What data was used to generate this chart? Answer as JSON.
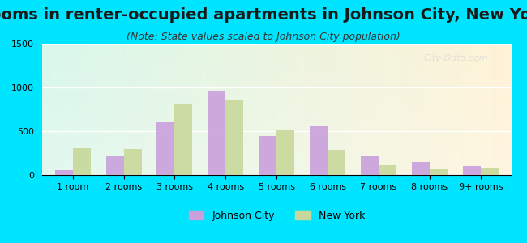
{
  "title": "Rooms in renter-occupied apartments in Johnson City, New York",
  "subtitle": "(Note: State values scaled to Johnson City population)",
  "categories": [
    "1 room",
    "2 rooms",
    "3 rooms",
    "4 rooms",
    "5 rooms",
    "6 rooms",
    "7 rooms",
    "8 rooms",
    "9+ rooms"
  ],
  "johnson_city": [
    60,
    215,
    600,
    965,
    440,
    555,
    220,
    145,
    100
  ],
  "new_york": [
    305,
    300,
    810,
    855,
    505,
    285,
    115,
    65,
    75
  ],
  "jc_color": "#c9a0dc",
  "ny_color": "#c8d89a",
  "ylim": [
    0,
    1500
  ],
  "yticks": [
    0,
    500,
    1000,
    1500
  ],
  "bar_width": 0.35,
  "background_outer": "#00e5ff",
  "background_inner_left": "#d4f5e9",
  "background_inner_right": "#ffffff",
  "title_fontsize": 14,
  "subtitle_fontsize": 9,
  "tick_fontsize": 8,
  "legend_fontsize": 9,
  "watermark": "City-Data.com"
}
